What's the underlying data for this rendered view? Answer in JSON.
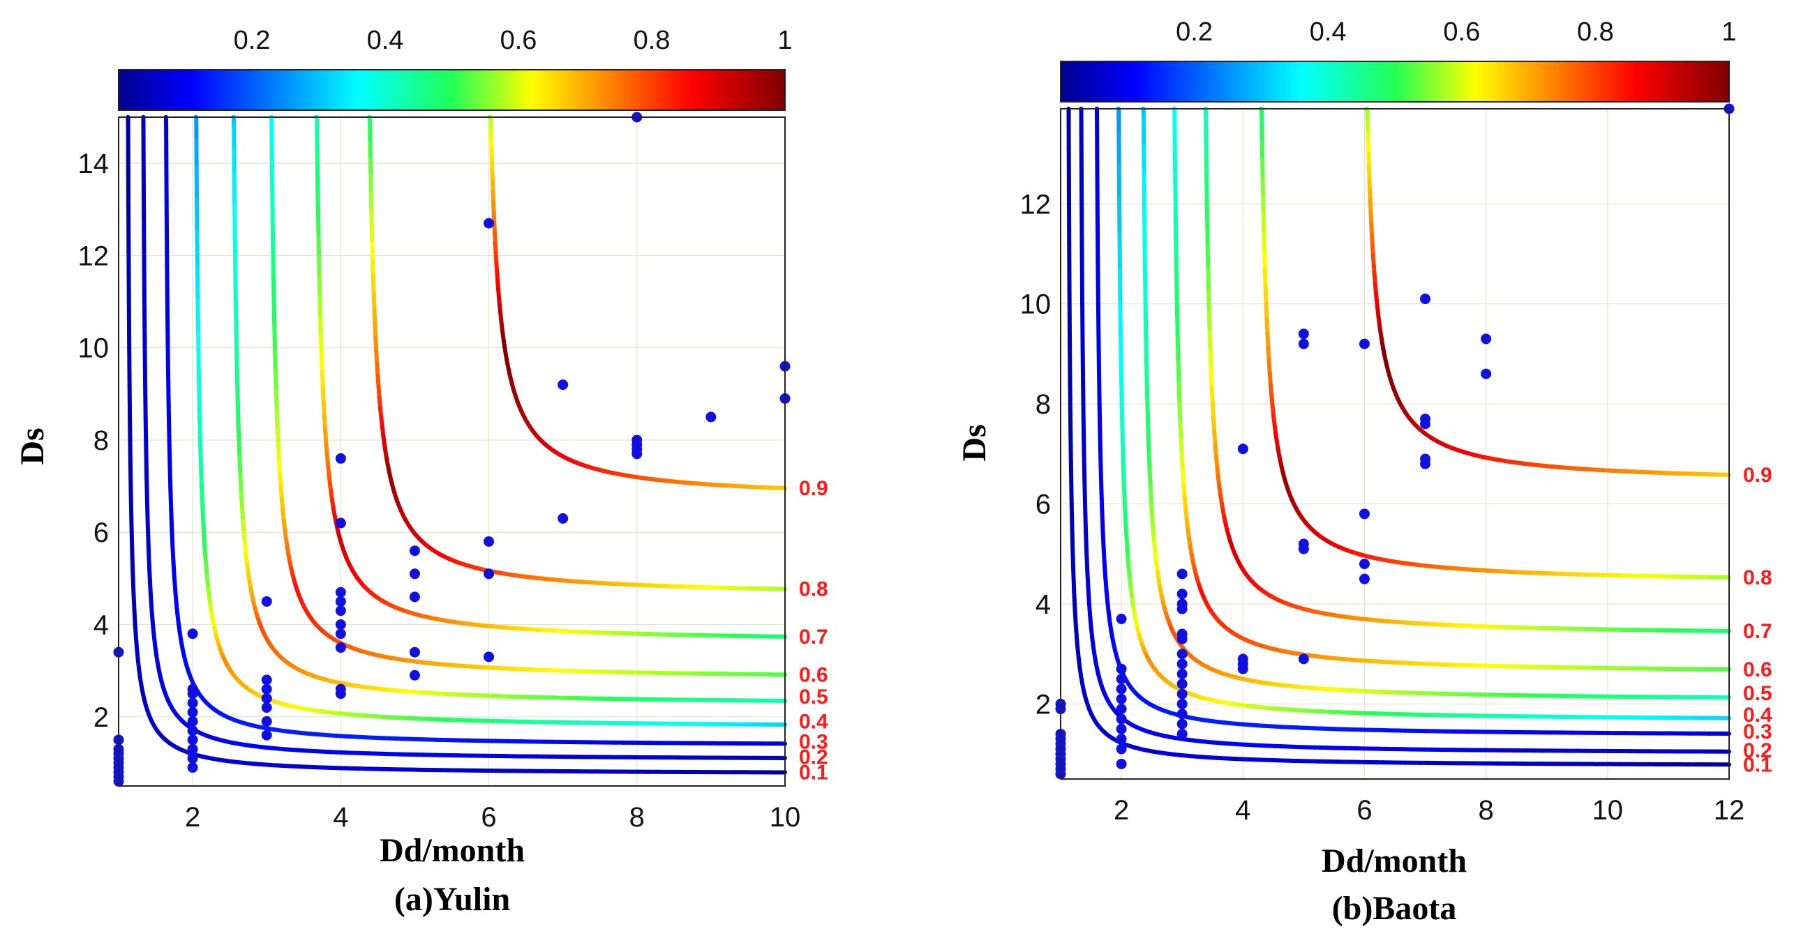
{
  "chart_data": [
    {
      "type": "contour",
      "caption": "(a)Yulin",
      "xlabel": "Dd/month",
      "ylabel": "Ds",
      "xlim": [
        1,
        10
      ],
      "ylim": [
        0.5,
        15
      ],
      "xticks": [
        2,
        4,
        6,
        8,
        10
      ],
      "yticks": [
        2,
        4,
        6,
        8,
        10,
        12,
        14
      ],
      "grid": true,
      "colorbar": {
        "position": "top",
        "range": [
          0,
          1
        ],
        "ticks": [
          "0.2",
          "0.4",
          "0.6",
          "0.8",
          "1"
        ],
        "colormap": "jet"
      },
      "contour_levels": [
        {
          "label": "0.1",
          "x_asymptote": 1.1,
          "y_asymptote": 0.75
        },
        {
          "label": "0.2",
          "x_asymptote": 1.3,
          "y_asymptote": 1.05
        },
        {
          "label": "0.3",
          "x_asymptote": 1.6,
          "y_asymptote": 1.35
        },
        {
          "label": "0.4",
          "x_asymptote": 2.0,
          "y_asymptote": 1.75
        },
        {
          "label": "0.5",
          "x_asymptote": 2.5,
          "y_asymptote": 2.25
        },
        {
          "label": "0.6",
          "x_asymptote": 3.0,
          "y_asymptote": 2.8
        },
        {
          "label": "0.7",
          "x_asymptote": 3.6,
          "y_asymptote": 3.6
        },
        {
          "label": "0.8",
          "x_asymptote": 4.3,
          "y_asymptote": 4.6
        },
        {
          "label": "0.9",
          "x_asymptote": 5.9,
          "y_asymptote": 6.7
        }
      ],
      "points": [
        [
          1,
          0.6
        ],
        [
          1,
          0.7
        ],
        [
          1,
          0.8
        ],
        [
          1,
          0.9
        ],
        [
          1,
          1.0
        ],
        [
          1,
          1.1
        ],
        [
          1,
          1.2
        ],
        [
          1,
          1.3
        ],
        [
          1,
          1.5
        ],
        [
          1,
          3.4
        ],
        [
          2,
          0.9
        ],
        [
          2,
          1.1
        ],
        [
          2,
          1.3
        ],
        [
          2,
          1.5
        ],
        [
          2,
          1.7
        ],
        [
          2,
          1.9
        ],
        [
          2,
          2.1
        ],
        [
          2,
          2.3
        ],
        [
          2,
          2.5
        ],
        [
          2,
          2.6
        ],
        [
          2,
          3.8
        ],
        [
          3,
          1.6
        ],
        [
          3,
          1.9
        ],
        [
          3,
          2.2
        ],
        [
          3,
          2.4
        ],
        [
          3,
          2.6
        ],
        [
          3,
          2.8
        ],
        [
          3,
          4.5
        ],
        [
          4,
          2.5
        ],
        [
          4,
          2.6
        ],
        [
          4,
          3.5
        ],
        [
          4,
          3.8
        ],
        [
          4,
          4.0
        ],
        [
          4,
          4.3
        ],
        [
          4,
          4.5
        ],
        [
          4,
          4.7
        ],
        [
          4,
          6.2
        ],
        [
          4,
          7.6
        ],
        [
          5,
          2.9
        ],
        [
          5,
          3.4
        ],
        [
          5,
          4.6
        ],
        [
          5,
          5.1
        ],
        [
          5,
          5.6
        ],
        [
          6,
          3.3
        ],
        [
          6,
          5.1
        ],
        [
          6,
          5.8
        ],
        [
          6,
          12.7
        ],
        [
          7,
          6.3
        ],
        [
          7,
          9.2
        ],
        [
          8,
          7.7
        ],
        [
          8,
          7.8
        ],
        [
          8,
          7.9
        ],
        [
          8,
          8.0
        ],
        [
          8,
          15.0
        ],
        [
          9,
          8.5
        ],
        [
          10,
          8.9
        ],
        [
          10,
          9.6
        ]
      ]
    },
    {
      "type": "contour",
      "caption": "(b)Baota",
      "xlabel": "Dd/month",
      "ylabel": "Ds",
      "xlim": [
        1,
        12
      ],
      "ylim": [
        0.5,
        13.9
      ],
      "xticks": [
        2,
        4,
        6,
        8,
        10,
        12
      ],
      "yticks": [
        2,
        4,
        6,
        8,
        10,
        12
      ],
      "grid": true,
      "colorbar": {
        "position": "top",
        "range": [
          0,
          1
        ],
        "ticks": [
          "0.2",
          "0.4",
          "0.6",
          "0.8",
          "1"
        ],
        "colormap": "jet"
      },
      "contour_levels": [
        {
          "label": "0.1",
          "x_asymptote": 1.1,
          "y_asymptote": 0.75
        },
        {
          "label": "0.2",
          "x_asymptote": 1.3,
          "y_asymptote": 1.0
        },
        {
          "label": "0.3",
          "x_asymptote": 1.55,
          "y_asymptote": 1.35
        },
        {
          "label": "0.4",
          "x_asymptote": 1.9,
          "y_asymptote": 1.65
        },
        {
          "label": "0.5",
          "x_asymptote": 2.3,
          "y_asymptote": 2.05
        },
        {
          "label": "0.6",
          "x_asymptote": 2.8,
          "y_asymptote": 2.6
        },
        {
          "label": "0.7",
          "x_asymptote": 3.3,
          "y_asymptote": 3.35
        },
        {
          "label": "0.8",
          "x_asymptote": 4.2,
          "y_asymptote": 4.4
        },
        {
          "label": "0.9",
          "x_asymptote": 5.9,
          "y_asymptote": 6.4
        }
      ],
      "points": [
        [
          1,
          0.6
        ],
        [
          1,
          0.7
        ],
        [
          1,
          0.8
        ],
        [
          1,
          0.9
        ],
        [
          1,
          1.0
        ],
        [
          1,
          1.1
        ],
        [
          1,
          1.2
        ],
        [
          1,
          1.3
        ],
        [
          1,
          1.4
        ],
        [
          1,
          1.9
        ],
        [
          1,
          2.0
        ],
        [
          2,
          0.8
        ],
        [
          2,
          1.1
        ],
        [
          2,
          1.3
        ],
        [
          2,
          1.5
        ],
        [
          2,
          1.7
        ],
        [
          2,
          1.9
        ],
        [
          2,
          2.1
        ],
        [
          2,
          2.3
        ],
        [
          2,
          2.5
        ],
        [
          2,
          2.7
        ],
        [
          2,
          3.7
        ],
        [
          3,
          1.4
        ],
        [
          3,
          1.6
        ],
        [
          3,
          1.8
        ],
        [
          3,
          2.0
        ],
        [
          3,
          2.2
        ],
        [
          3,
          2.4
        ],
        [
          3,
          2.6
        ],
        [
          3,
          2.8
        ],
        [
          3,
          3.0
        ],
        [
          3,
          3.3
        ],
        [
          3,
          3.4
        ],
        [
          3,
          3.9
        ],
        [
          3,
          4.0
        ],
        [
          3,
          4.2
        ],
        [
          3,
          4.6
        ],
        [
          4,
          2.7
        ],
        [
          4,
          2.8
        ],
        [
          4,
          2.9
        ],
        [
          4,
          7.1
        ],
        [
          5,
          2.9
        ],
        [
          5,
          5.1
        ],
        [
          5,
          5.2
        ],
        [
          5,
          9.2
        ],
        [
          5,
          9.4
        ],
        [
          6,
          4.5
        ],
        [
          6,
          4.8
        ],
        [
          6,
          5.8
        ],
        [
          6,
          9.2
        ],
        [
          7,
          6.8
        ],
        [
          7,
          6.9
        ],
        [
          7,
          7.6
        ],
        [
          7,
          7.7
        ],
        [
          7,
          10.1
        ],
        [
          8,
          8.6
        ],
        [
          8,
          9.3
        ],
        [
          12,
          13.9
        ]
      ]
    }
  ]
}
